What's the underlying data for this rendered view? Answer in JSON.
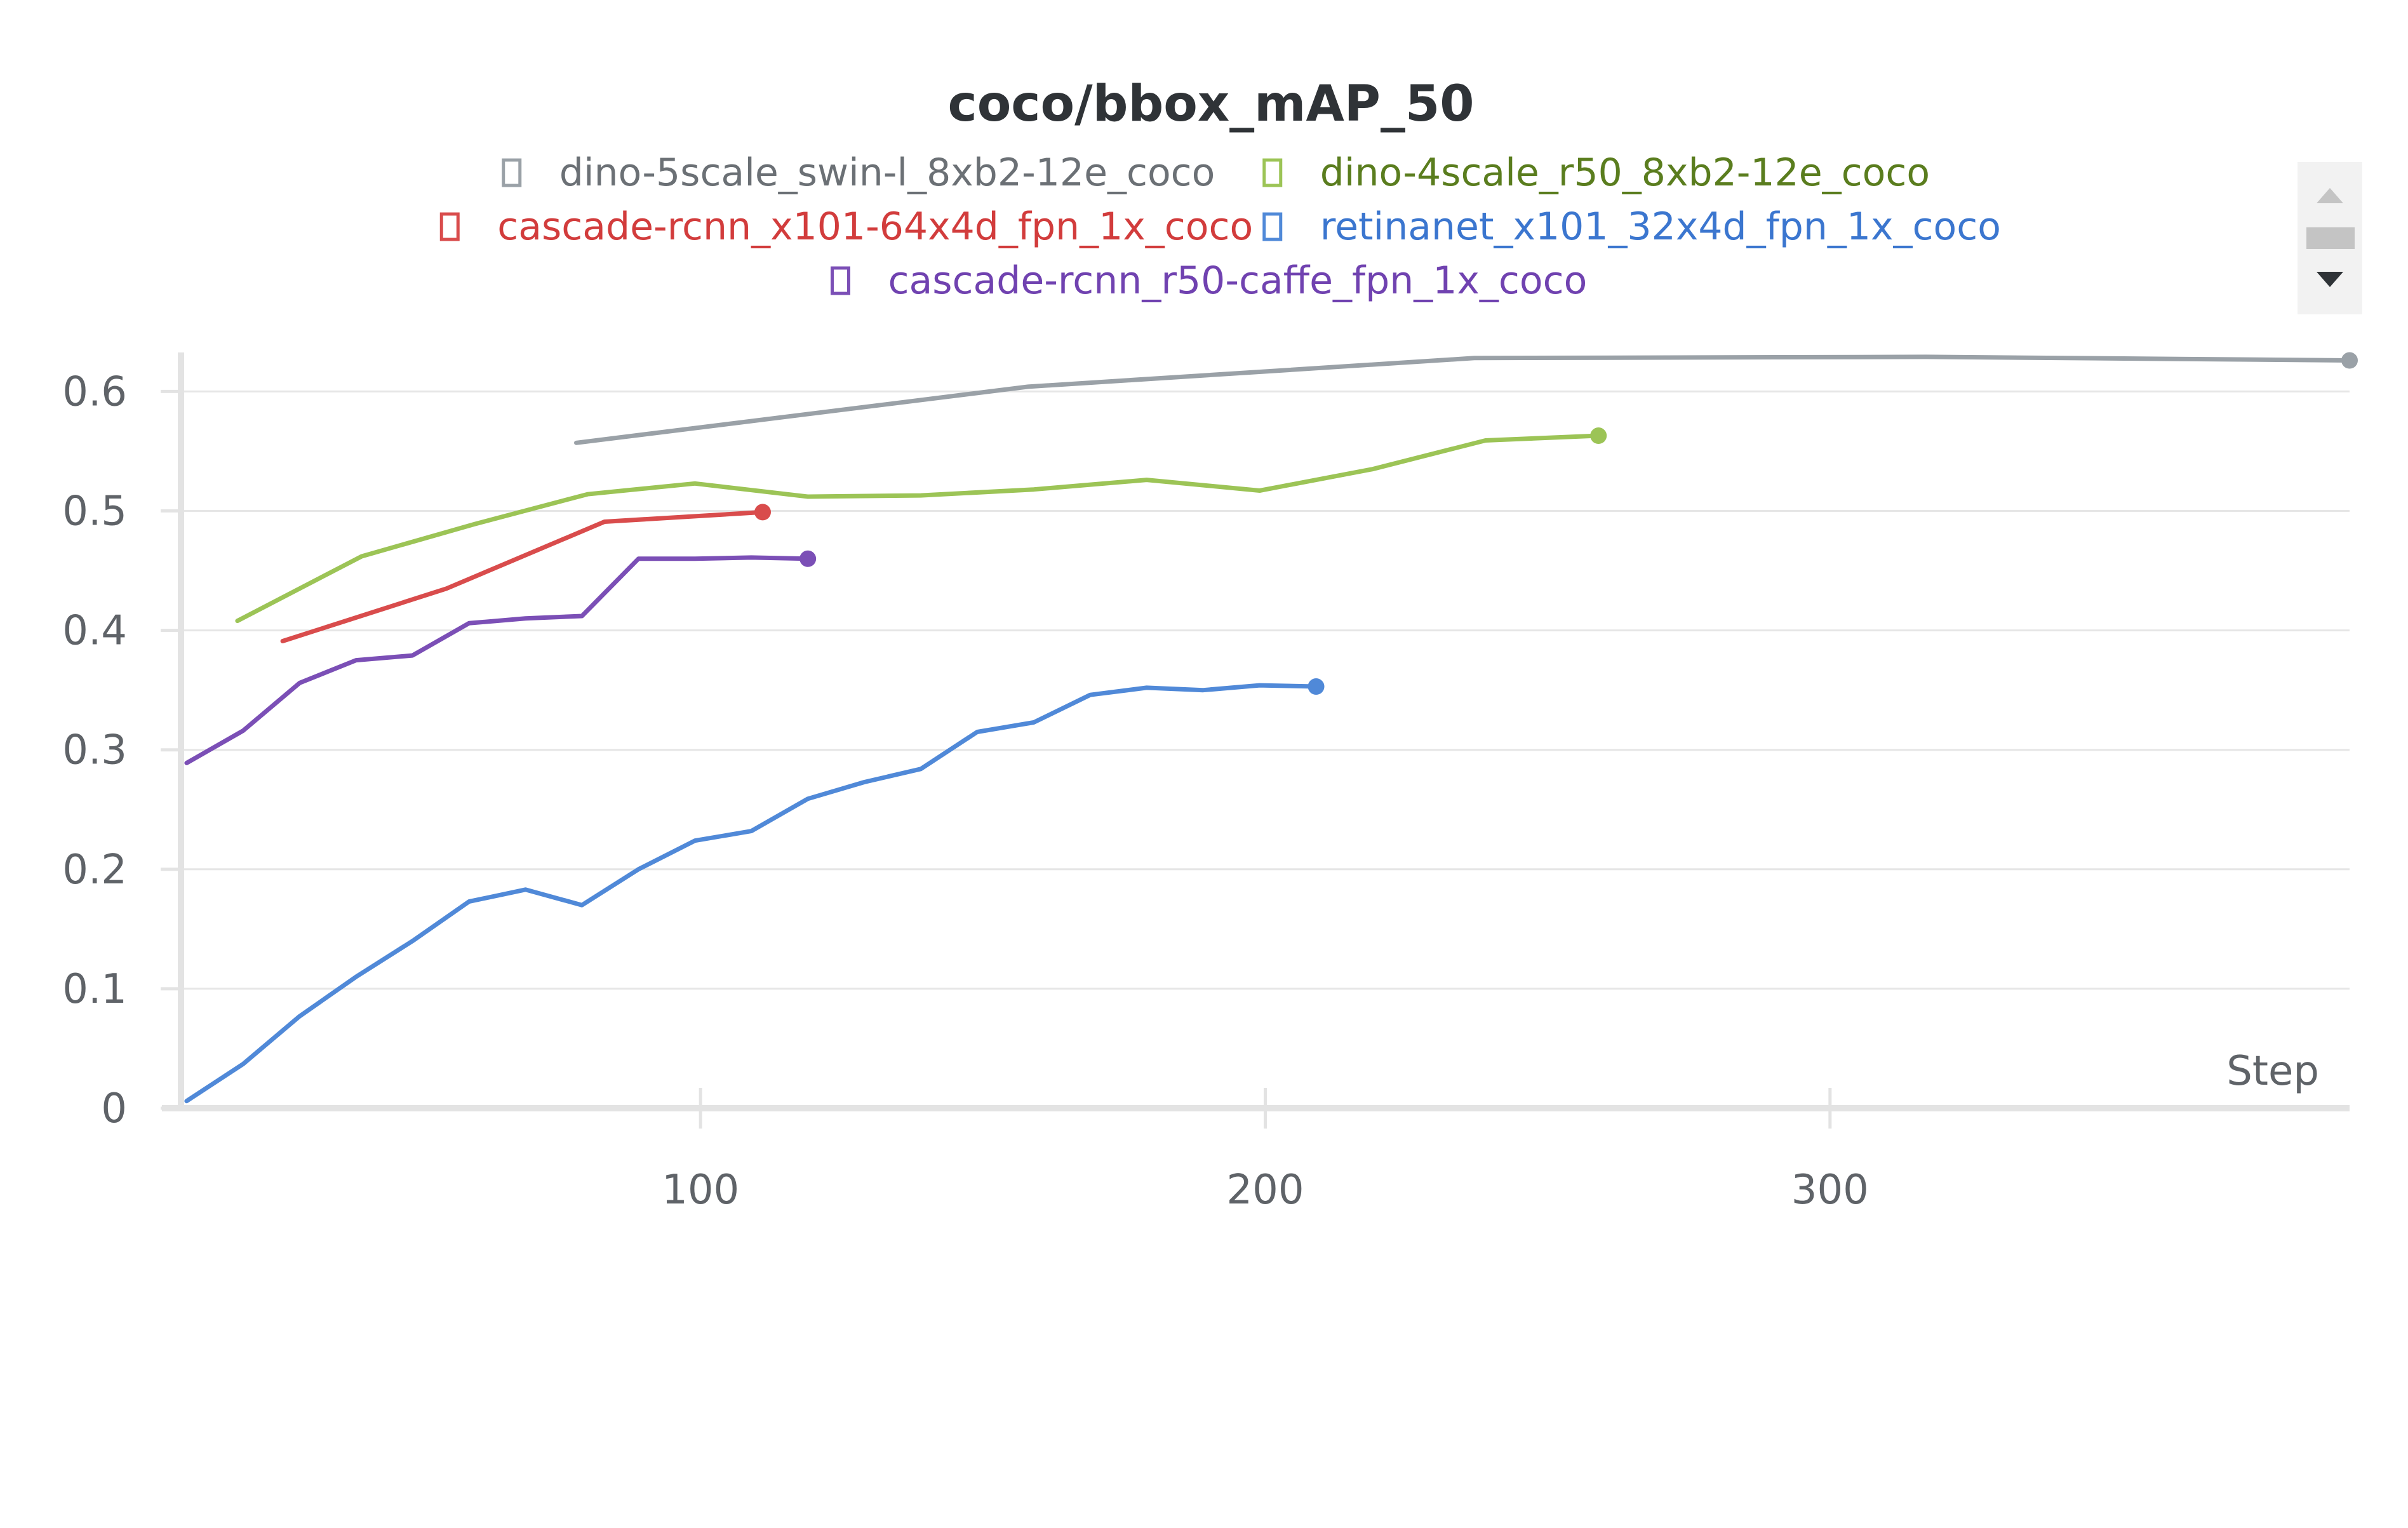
{
  "chart_data": {
    "type": "line",
    "title": "coco/bbox_mAP_50",
    "xlabel": "Step",
    "ylabel": "",
    "xlim": [
      8,
      392
    ],
    "ylim": [
      0,
      0.63
    ],
    "x_ticks": [
      100,
      200,
      300
    ],
    "y_ticks": [
      0,
      0.1,
      0.2,
      0.3,
      0.4,
      0.5,
      0.6
    ],
    "grid": true,
    "legend_position": "top",
    "series": [
      {
        "name": "dino-5scale_swin-l_8xb2-12e_coco",
        "color": "#9aa1a7",
        "text_color": "#6b7075",
        "x": [
          78,
          158,
          237,
          317,
          392
        ],
        "y": [
          0.557,
          0.604,
          0.628,
          0.629,
          0.626
        ]
      },
      {
        "name": "dino-4scale_r50_8xb2-12e_coco",
        "color": "#9cc456",
        "text_color": "#5a7d1e",
        "x": [
          18,
          40,
          60,
          80,
          99,
          119,
          139,
          159,
          179,
          199,
          219,
          239,
          259
        ],
        "y": [
          0.408,
          0.462,
          0.489,
          0.514,
          0.523,
          0.512,
          0.513,
          0.518,
          0.526,
          0.517,
          0.535,
          0.559,
          0.563
        ]
      },
      {
        "name": "cascade-rcnn_x101-64x4d_fpn_1x_coco",
        "color": "#d94c4c",
        "text_color": "#d23c3c",
        "x": [
          26,
          55,
          83,
          111
        ],
        "y": [
          0.391,
          0.435,
          0.491,
          0.499
        ]
      },
      {
        "name": "retinanet_x101_32x4d_fpn_1x_coco",
        "color": "#5089d8",
        "text_color": "#3b76cf",
        "x": [
          9,
          19,
          29,
          39,
          49,
          59,
          69,
          79,
          89,
          99,
          109,
          119,
          129,
          139,
          149,
          159,
          169,
          179,
          189,
          199,
          209
        ],
        "y": [
          0.006,
          0.037,
          0.077,
          0.11,
          0.14,
          0.173,
          0.183,
          0.17,
          0.2,
          0.224,
          0.232,
          0.259,
          0.273,
          0.284,
          0.315,
          0.323,
          0.346,
          0.352,
          0.35,
          0.354,
          0.353
        ]
      },
      {
        "name": "cascade-rcnn_r50-caffe_fpn_1x_coco",
        "color": "#7b4fb6",
        "text_color": "#7042b0",
        "x": [
          9,
          19,
          29,
          39,
          49,
          59,
          69,
          79,
          89,
          99,
          109,
          119
        ],
        "y": [
          0.289,
          0.316,
          0.356,
          0.375,
          0.379,
          0.406,
          0.41,
          0.412,
          0.46,
          0.46,
          0.461,
          0.46
        ]
      }
    ]
  }
}
